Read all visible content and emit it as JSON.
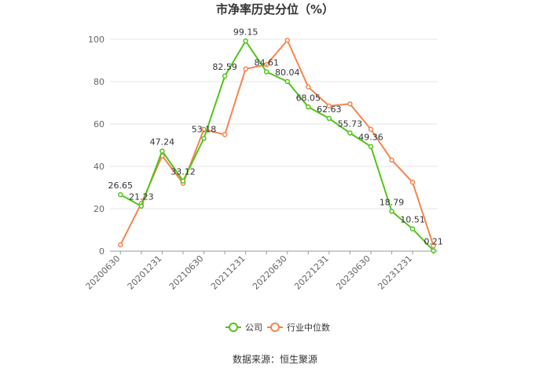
{
  "chart_data": {
    "type": "line",
    "title": "市净率历史分位（%）",
    "xlabel": "",
    "ylabel": "",
    "ylim": [
      0,
      100
    ],
    "yticks": [
      0,
      20,
      40,
      60,
      80,
      100
    ],
    "x": [
      "20200630",
      "20200930",
      "20201231",
      "20210331",
      "20210630",
      "20210930",
      "20211231",
      "20220331",
      "20220630",
      "20220930",
      "20221231",
      "20230331",
      "20230630",
      "20230930",
      "20231231",
      "20240331"
    ],
    "x_tick_labels": [
      "20200630",
      "",
      "20201231",
      "",
      "20210630",
      "",
      "20211231",
      "",
      "20220630",
      "",
      "20221231",
      "",
      "20230630",
      "",
      "20231231",
      ""
    ],
    "series": [
      {
        "name": "公司",
        "color": "#52c41a",
        "values": [
          26.65,
          21.23,
          47.24,
          33.12,
          53.18,
          82.59,
          99.15,
          84.61,
          80.04,
          68.05,
          62.63,
          55.73,
          49.36,
          18.79,
          10.51,
          0.21
        ],
        "labels": [
          "26.65",
          "21.23",
          "47.24",
          "33.12",
          "53.18",
          "82.59",
          "99.15",
          "84.61",
          "80.04",
          "68.05",
          "62.63",
          "55.73",
          "49.36",
          "18.79",
          "10.51",
          "0.21"
        ]
      },
      {
        "name": "行业中位数",
        "color": "#f5844c",
        "values": [
          3.0,
          22.5,
          45.0,
          32.0,
          57.5,
          55.0,
          86.0,
          88.0,
          99.5,
          77.5,
          68.5,
          69.5,
          57.5,
          43.0,
          32.5,
          2.5
        ]
      }
    ],
    "grid": true,
    "legend_position": "bottom"
  },
  "legend": {
    "company": "公司",
    "industry": "行业中位数"
  },
  "source": "数据来源：恒生聚源"
}
